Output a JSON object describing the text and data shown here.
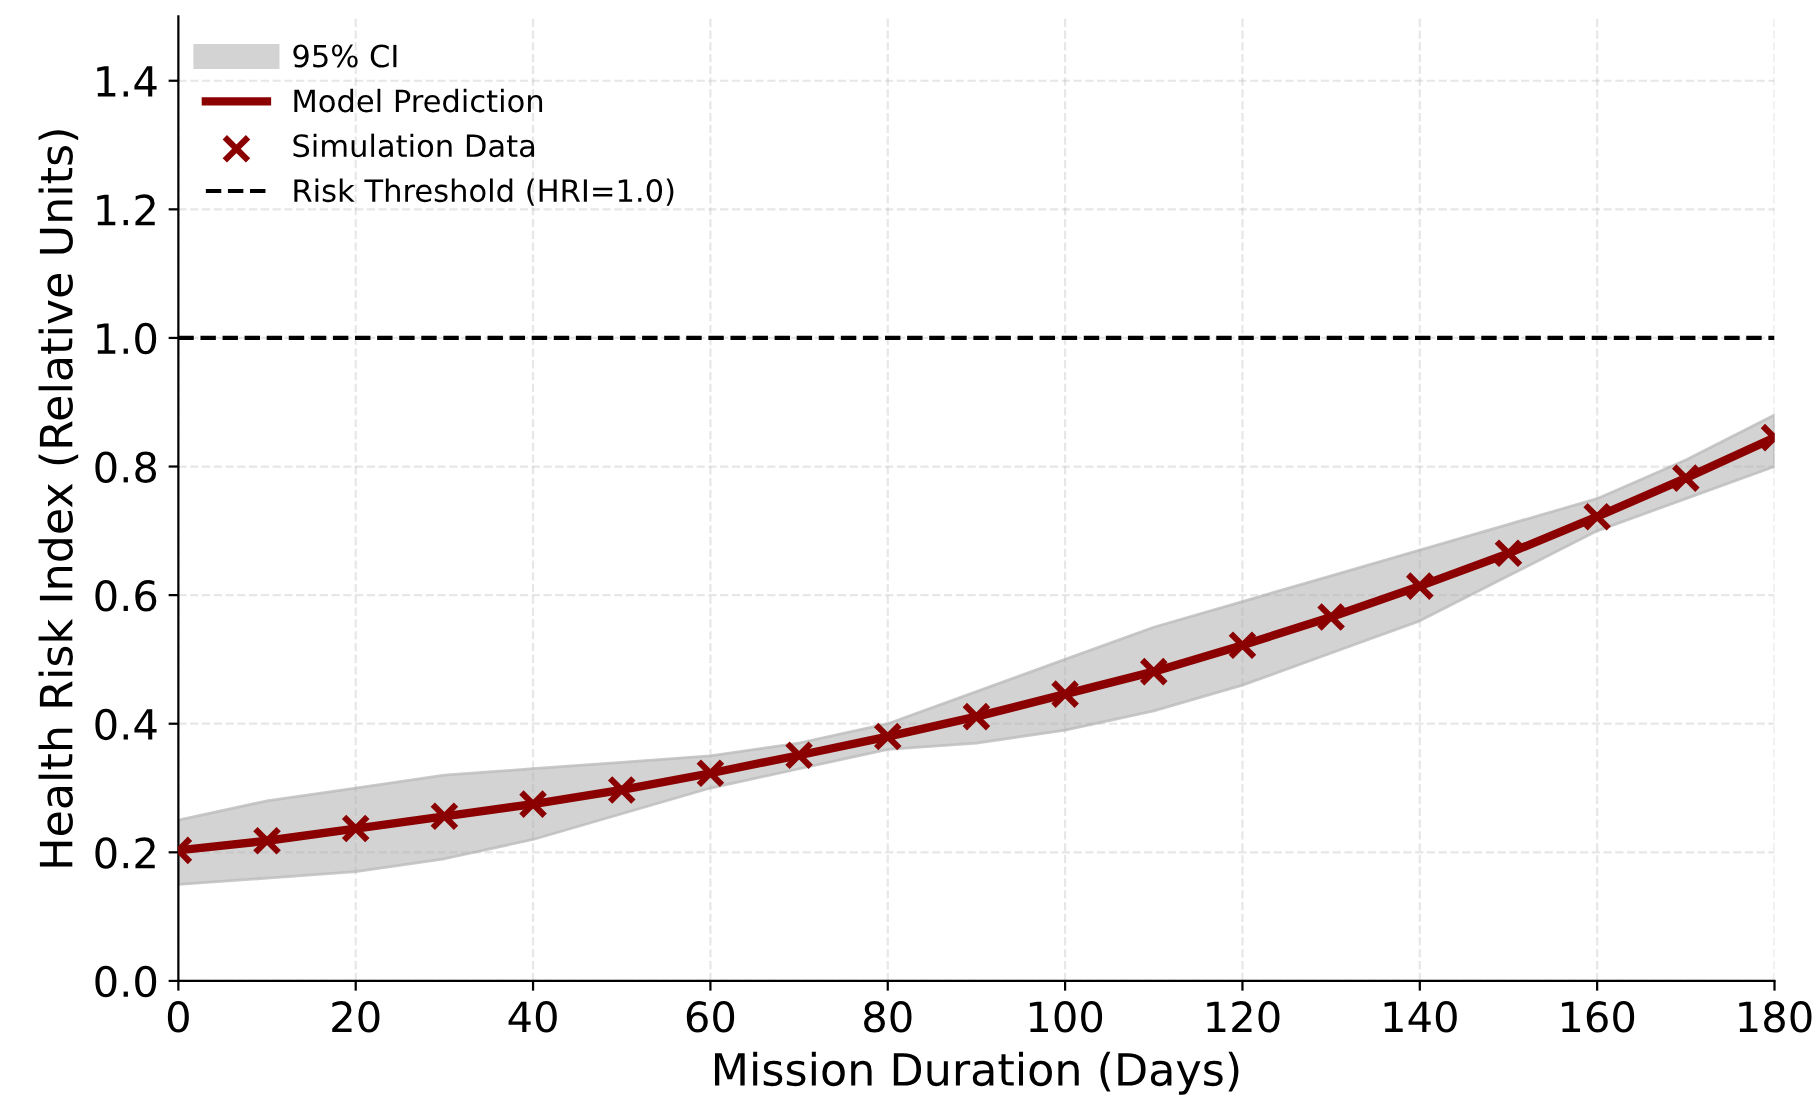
{
  "chart_data": {
    "type": "line",
    "xlabel": "Mission Duration (Days)",
    "ylabel": "Health Risk Index (Relative Units)",
    "xlim": [
      0,
      180
    ],
    "xticks": [
      0,
      20,
      40,
      60,
      80,
      100,
      120,
      140,
      160,
      180
    ],
    "ylim": [
      0,
      1.5
    ],
    "yticks": [
      {
        "value": 0,
        "label": "0.0"
      },
      0.2,
      0.4,
      0.6,
      0.8,
      {
        "value": 1,
        "label": "1.0"
      },
      1.2,
      1.4
    ],
    "grid": true,
    "legend": "top left",
    "annotations": [
      "95% CI"
    ],
    "series": [
      {
        "name": "Model Prediction",
        "color": "#8b0000",
        "marker": "none",
        "line_style": "solid",
        "x": [
          0,
          10,
          20,
          30,
          40,
          50,
          60,
          70,
          80,
          90,
          100,
          110,
          120,
          130,
          140,
          150,
          160,
          170,
          180
        ],
        "values": [
          0.203,
          0.218,
          0.237,
          0.256,
          0.275,
          0.297,
          0.323,
          0.351,
          0.38,
          0.411,
          0.446,
          0.481,
          0.522,
          0.566,
          0.614,
          0.665,
          0.722,
          0.782,
          0.845
        ],
        "lower": [
          0.15,
          0.16,
          0.17,
          0.19,
          0.22,
          0.26,
          0.3,
          0.33,
          0.36,
          0.37,
          0.39,
          0.42,
          0.46,
          0.51,
          0.56,
          0.63,
          0.7,
          0.75,
          0.8
        ],
        "upper": [
          0.25,
          0.28,
          0.3,
          0.32,
          0.33,
          0.34,
          0.35,
          0.37,
          0.4,
          0.45,
          0.5,
          0.55,
          0.59,
          0.63,
          0.67,
          0.71,
          0.75,
          0.81,
          0.88
        ]
      },
      {
        "name": "Simulation Data",
        "type": "scatter",
        "color": "#8b0000",
        "marker": "cross",
        "x": [
          0,
          10,
          20,
          30,
          40,
          50,
          60,
          70,
          80,
          90,
          100,
          110,
          120,
          130,
          140,
          150,
          160,
          170,
          180
        ],
        "values": [
          0.203,
          0.218,
          0.237,
          0.256,
          0.275,
          0.297,
          0.323,
          0.351,
          0.38,
          0.411,
          0.446,
          0.481,
          0.522,
          0.566,
          0.614,
          0.665,
          0.722,
          0.782,
          0.845
        ]
      }
    ],
    "ref_lines": [
      {
        "axis": "y",
        "value": 1.0,
        "label": "Risk Threshold (HRI=1.0)",
        "color": "#000000",
        "line_style": "dashed"
      }
    ]
  }
}
